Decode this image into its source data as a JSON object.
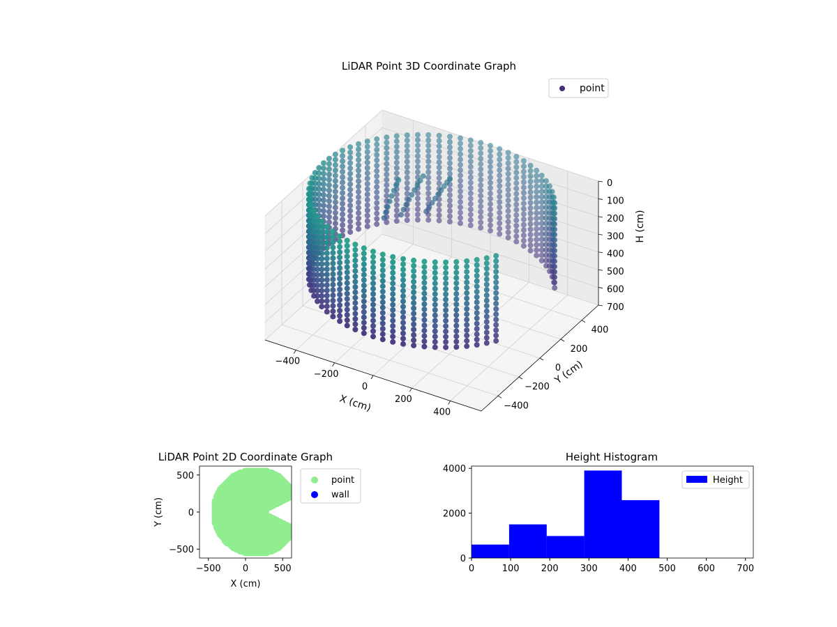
{
  "chart_data": [
    {
      "type": "scatter",
      "title": "LiDAR Point 3D Coordinate Graph",
      "xlabel": "X (cm)",
      "ylabel": "Y (cm)",
      "zlabel": "H (cm)",
      "x_ticks": [
        "−400",
        "−200",
        "0",
        "200",
        "400"
      ],
      "y_ticks": [
        "400",
        "200",
        "0",
        "−200",
        "−400"
      ],
      "z_ticks": [
        "0",
        "100",
        "200",
        "300",
        "400",
        "500",
        "600",
        "700"
      ],
      "xlim": [
        -560,
        560
      ],
      "ylim": [
        -560,
        560
      ],
      "zlim": [
        0,
        700
      ],
      "z_inverted": true,
      "grid": true,
      "legend": {
        "position": "top-right",
        "entries": [
          {
            "label": "point",
            "color": "#472c7a"
          }
        ]
      },
      "colormap": "viridis",
      "series": [
        {
          "name": "point",
          "description_shape": "cylindrical wall of points, radius ~560 cm, heights 0-480 cm, with opening on the +X side",
          "radius": 560,
          "height_range": [
            0,
            480
          ],
          "gap_angle_deg": [
            -28,
            28
          ]
        }
      ]
    },
    {
      "type": "scatter",
      "title": "LiDAR Point 2D Coordinate Graph",
      "xlabel": "X (cm)",
      "ylabel": "Y (cm)",
      "x_ticks": [
        "−500",
        "0",
        "500"
      ],
      "y_ticks": [
        "500",
        "0",
        "−500"
      ],
      "xlim": [
        -620,
        620
      ],
      "ylim": [
        -620,
        620
      ],
      "legend": {
        "position": "outside-right",
        "entries": [
          {
            "label": "point",
            "color": "#90ee90"
          },
          {
            "label": "wall",
            "color": "#0000ff"
          }
        ]
      },
      "series": [
        {
          "name": "point",
          "color": "#90ee90",
          "radius": 560,
          "notch_x_range": [
            130,
            560
          ],
          "notch_y_half_width": 220
        },
        {
          "name": "wall",
          "color": "#0000ff",
          "values": []
        }
      ]
    },
    {
      "type": "bar",
      "title": "Height Histogram",
      "xlabel": "",
      "ylabel": "",
      "bin_edges": [
        0,
        96,
        192,
        288,
        384,
        480
      ],
      "values": [
        600,
        1500,
        980,
        3900,
        2580
      ],
      "xlim": [
        0,
        720
      ],
      "ylim": [
        0,
        4100
      ],
      "x_ticks": [
        "0",
        "100",
        "200",
        "300",
        "400",
        "500",
        "600",
        "700"
      ],
      "y_ticks": [
        "0",
        "2000",
        "4000"
      ],
      "legend": {
        "position": "top-right",
        "entries": [
          {
            "label": "Height",
            "color": "#0000ff"
          }
        ]
      },
      "color": "#0000ff"
    }
  ]
}
